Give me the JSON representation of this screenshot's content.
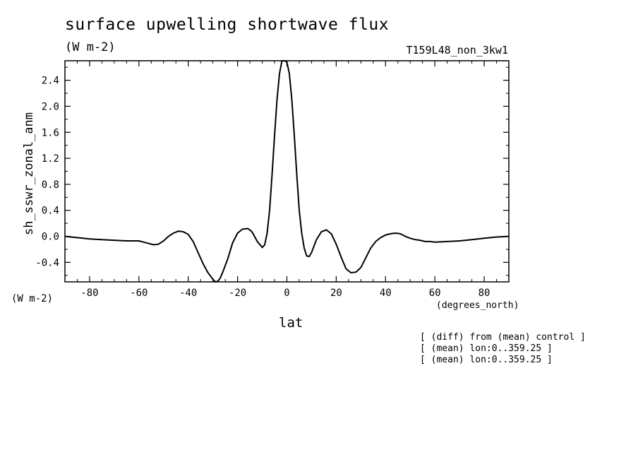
{
  "header": {
    "title": "surface upwelling shortwave flux",
    "units": "(W m-2)",
    "run": "T159L48_non_3kw1"
  },
  "axes": {
    "ylabel": "sh_sswr_zonal_anm",
    "ylabel_units": "(W m-2)",
    "xlabel": "lat",
    "xlabel_units": "(degrees_north)"
  },
  "notes": [
    "[ (diff) from (mean) control ]",
    "[ (mean) lon:0..359.25 ]",
    "[ (mean) lon:0..359.25 ]"
  ],
  "chart_data": {
    "type": "line",
    "title": "surface upwelling shortwave flux",
    "xlabel": "lat",
    "ylabel": "sh_sswr_zonal_anm",
    "xlim": [
      -90,
      90
    ],
    "ylim": [
      -0.7,
      2.7
    ],
    "xticks": [
      -80,
      -60,
      -40,
      -20,
      0,
      20,
      40,
      60,
      80
    ],
    "yticks": [
      -0.4,
      0.0,
      0.4,
      0.8,
      1.2,
      1.6,
      2.0,
      2.4
    ],
    "grid": false,
    "series": [
      {
        "x": [
          -90,
          -85,
          -80,
          -75,
          -70,
          -65,
          -60,
          -58,
          -56,
          -54,
          -52,
          -50,
          -48,
          -46,
          -44,
          -42,
          -40,
          -38,
          -36,
          -34,
          -32,
          -30,
          -29,
          -28,
          -27,
          -26,
          -24,
          -22,
          -20,
          -18,
          -16,
          -15,
          -14,
          -12,
          -10,
          -9,
          -8,
          -7,
          -6,
          -5,
          -4,
          -3,
          -2,
          -1,
          0,
          1,
          2,
          3,
          4,
          5,
          6,
          7,
          8,
          9,
          10,
          12,
          14,
          16,
          18,
          20,
          22,
          24,
          26,
          28,
          30,
          32,
          34,
          36,
          38,
          40,
          42,
          44,
          46,
          48,
          50,
          52,
          54,
          56,
          58,
          60,
          65,
          70,
          75,
          80,
          85,
          90
        ],
        "y": [
          0.0,
          -0.02,
          -0.04,
          -0.05,
          -0.06,
          -0.07,
          -0.07,
          -0.09,
          -0.11,
          -0.13,
          -0.12,
          -0.07,
          0.0,
          0.05,
          0.08,
          0.07,
          0.03,
          -0.08,
          -0.25,
          -0.42,
          -0.56,
          -0.66,
          -0.7,
          -0.69,
          -0.64,
          -0.55,
          -0.35,
          -0.1,
          0.05,
          0.11,
          0.12,
          0.1,
          0.06,
          -0.08,
          -0.17,
          -0.13,
          0.05,
          0.4,
          0.95,
          1.55,
          2.1,
          2.5,
          2.7,
          2.72,
          2.68,
          2.5,
          2.1,
          1.55,
          0.95,
          0.4,
          0.05,
          -0.18,
          -0.3,
          -0.31,
          -0.25,
          -0.05,
          0.07,
          0.1,
          0.04,
          -0.12,
          -0.32,
          -0.5,
          -0.56,
          -0.55,
          -0.48,
          -0.33,
          -0.18,
          -0.08,
          -0.02,
          0.02,
          0.04,
          0.05,
          0.04,
          0.0,
          -0.03,
          -0.05,
          -0.06,
          -0.08,
          -0.08,
          -0.09,
          -0.08,
          -0.07,
          -0.05,
          -0.03,
          -0.01,
          0.0
        ]
      }
    ]
  }
}
